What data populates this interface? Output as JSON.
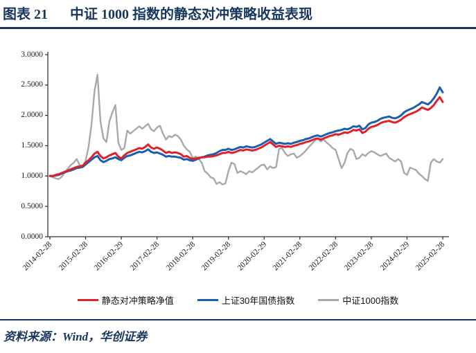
{
  "figure": {
    "label": "图表 21",
    "title": "中证 1000 指数的静态对冲策略收益表现",
    "accent_color": "#17375e"
  },
  "source": {
    "text": "资料来源：Wind，华创证券"
  },
  "chart_data": {
    "type": "line",
    "title": "",
    "xlabel": "",
    "ylabel": "",
    "ylim": [
      0,
      3
    ],
    "grid": false,
    "legend_position": "bottom",
    "x_unit": "monthly net value, 2014-02-28 to 2025-02-28, normalized to 1.0",
    "x_tick_interval_months": 12,
    "x_tick_labels": [
      "2014-02-28",
      "2015-02-28",
      "2016-02-29",
      "2017-02-28",
      "2018-02-28",
      "2019-02-28",
      "2020-02-29",
      "2021-02-28",
      "2022-02-28",
      "2023-02-28",
      "2024-02-29",
      "2025-02-28"
    ],
    "y_ticks": [
      0,
      0.5,
      1,
      1.5,
      2,
      2.5,
      3
    ],
    "y_tick_labels": [
      "0.0000",
      "0.5000",
      "1.0000",
      "1.5000",
      "2.0000",
      "2.5000",
      "3.0000"
    ],
    "axis_color": "#333333",
    "series": [
      {
        "name": "静态对冲策略净值",
        "color": "#e02128",
        "values": [
          1.0,
          1.0,
          1.02,
          1.03,
          1.05,
          1.07,
          1.09,
          1.11,
          1.13,
          1.15,
          1.16,
          1.17,
          1.22,
          1.26,
          1.31,
          1.37,
          1.4,
          1.33,
          1.29,
          1.31,
          1.34,
          1.36,
          1.38,
          1.32,
          1.29,
          1.34,
          1.38,
          1.4,
          1.42,
          1.44,
          1.46,
          1.45,
          1.48,
          1.52,
          1.47,
          1.45,
          1.47,
          1.45,
          1.42,
          1.38,
          1.4,
          1.38,
          1.39,
          1.38,
          1.36,
          1.32,
          1.33,
          1.3,
          1.28,
          1.29,
          1.3,
          1.31,
          1.31,
          1.32,
          1.32,
          1.33,
          1.34,
          1.36,
          1.38,
          1.38,
          1.4,
          1.38,
          1.39,
          1.41,
          1.43,
          1.42,
          1.44,
          1.43,
          1.42,
          1.43,
          1.45,
          1.47,
          1.5,
          1.53,
          1.56,
          1.52,
          1.48,
          1.5,
          1.49,
          1.48,
          1.49,
          1.48,
          1.5,
          1.51,
          1.53,
          1.54,
          1.56,
          1.57,
          1.59,
          1.61,
          1.62,
          1.6,
          1.62,
          1.64,
          1.66,
          1.67,
          1.69,
          1.68,
          1.7,
          1.72,
          1.71,
          1.73,
          1.76,
          1.75,
          1.77,
          1.71,
          1.73,
          1.78,
          1.81,
          1.82,
          1.84,
          1.87,
          1.89,
          1.9,
          1.91,
          1.89,
          1.88,
          1.9,
          1.93,
          1.97,
          2.0,
          2.02,
          2.04,
          2.06,
          2.09,
          2.13,
          2.11,
          2.09,
          2.12,
          2.17,
          2.24,
          2.3,
          2.22
        ]
      },
      {
        "name": "上证30年国债指数",
        "color": "#1a5eb4",
        "values": [
          1.0,
          1.0,
          1.01,
          1.02,
          1.04,
          1.06,
          1.08,
          1.09,
          1.11,
          1.13,
          1.14,
          1.15,
          1.19,
          1.23,
          1.27,
          1.31,
          1.33,
          1.26,
          1.23,
          1.25,
          1.28,
          1.29,
          1.31,
          1.28,
          1.26,
          1.3,
          1.33,
          1.34,
          1.36,
          1.38,
          1.4,
          1.39,
          1.41,
          1.44,
          1.4,
          1.38,
          1.39,
          1.37,
          1.35,
          1.32,
          1.33,
          1.32,
          1.32,
          1.31,
          1.3,
          1.27,
          1.28,
          1.26,
          1.25,
          1.27,
          1.29,
          1.31,
          1.32,
          1.34,
          1.35,
          1.36,
          1.38,
          1.41,
          1.43,
          1.43,
          1.45,
          1.43,
          1.44,
          1.46,
          1.48,
          1.47,
          1.49,
          1.48,
          1.47,
          1.48,
          1.5,
          1.52,
          1.55,
          1.58,
          1.61,
          1.57,
          1.53,
          1.55,
          1.54,
          1.53,
          1.54,
          1.53,
          1.55,
          1.56,
          1.58,
          1.59,
          1.61,
          1.62,
          1.64,
          1.66,
          1.67,
          1.65,
          1.67,
          1.69,
          1.71,
          1.72,
          1.74,
          1.75,
          1.76,
          1.78,
          1.77,
          1.79,
          1.82,
          1.81,
          1.83,
          1.77,
          1.79,
          1.85,
          1.88,
          1.89,
          1.91,
          1.94,
          1.96,
          1.97,
          1.98,
          1.96,
          1.95,
          1.97,
          2.0,
          2.05,
          2.08,
          2.1,
          2.12,
          2.15,
          2.18,
          2.22,
          2.2,
          2.18,
          2.22,
          2.28,
          2.36,
          2.46,
          2.38
        ]
      },
      {
        "name": "中证1000指数",
        "color": "#a8a8a8",
        "values": [
          1.0,
          0.98,
          0.96,
          0.95,
          0.99,
          1.06,
          1.12,
          1.18,
          1.22,
          1.28,
          1.18,
          1.16,
          1.25,
          1.48,
          1.85,
          2.4,
          2.67,
          1.9,
          1.62,
          1.56,
          1.9,
          2.05,
          2.17,
          1.55,
          1.43,
          1.46,
          1.75,
          1.7,
          1.74,
          1.78,
          1.82,
          1.78,
          1.82,
          1.86,
          1.77,
          1.74,
          1.8,
          1.83,
          1.7,
          1.6,
          1.66,
          1.64,
          1.68,
          1.66,
          1.6,
          1.5,
          1.44,
          1.4,
          1.3,
          1.32,
          1.28,
          1.22,
          1.08,
          1.04,
          0.98,
          0.96,
          0.87,
          0.9,
          0.86,
          0.88,
          1.08,
          1.22,
          1.2,
          1.05,
          1.08,
          1.06,
          1.03,
          1.08,
          1.06,
          1.1,
          1.14,
          1.18,
          1.19,
          1.11,
          1.16,
          1.13,
          1.15,
          1.45,
          1.46,
          1.38,
          1.33,
          1.36,
          1.37,
          1.3,
          1.33,
          1.37,
          1.42,
          1.48,
          1.53,
          1.58,
          1.62,
          1.57,
          1.6,
          1.55,
          1.51,
          1.46,
          1.43,
          1.28,
          1.13,
          1.22,
          1.38,
          1.45,
          1.42,
          1.28,
          1.3,
          1.36,
          1.33,
          1.38,
          1.41,
          1.39,
          1.36,
          1.33,
          1.35,
          1.37,
          1.3,
          1.27,
          1.24,
          1.28,
          1.24,
          1.05,
          1.02,
          1.14,
          1.12,
          1.1,
          1.04,
          1.0,
          0.95,
          0.92,
          1.22,
          1.28,
          1.24,
          1.22,
          1.28
        ]
      }
    ]
  }
}
